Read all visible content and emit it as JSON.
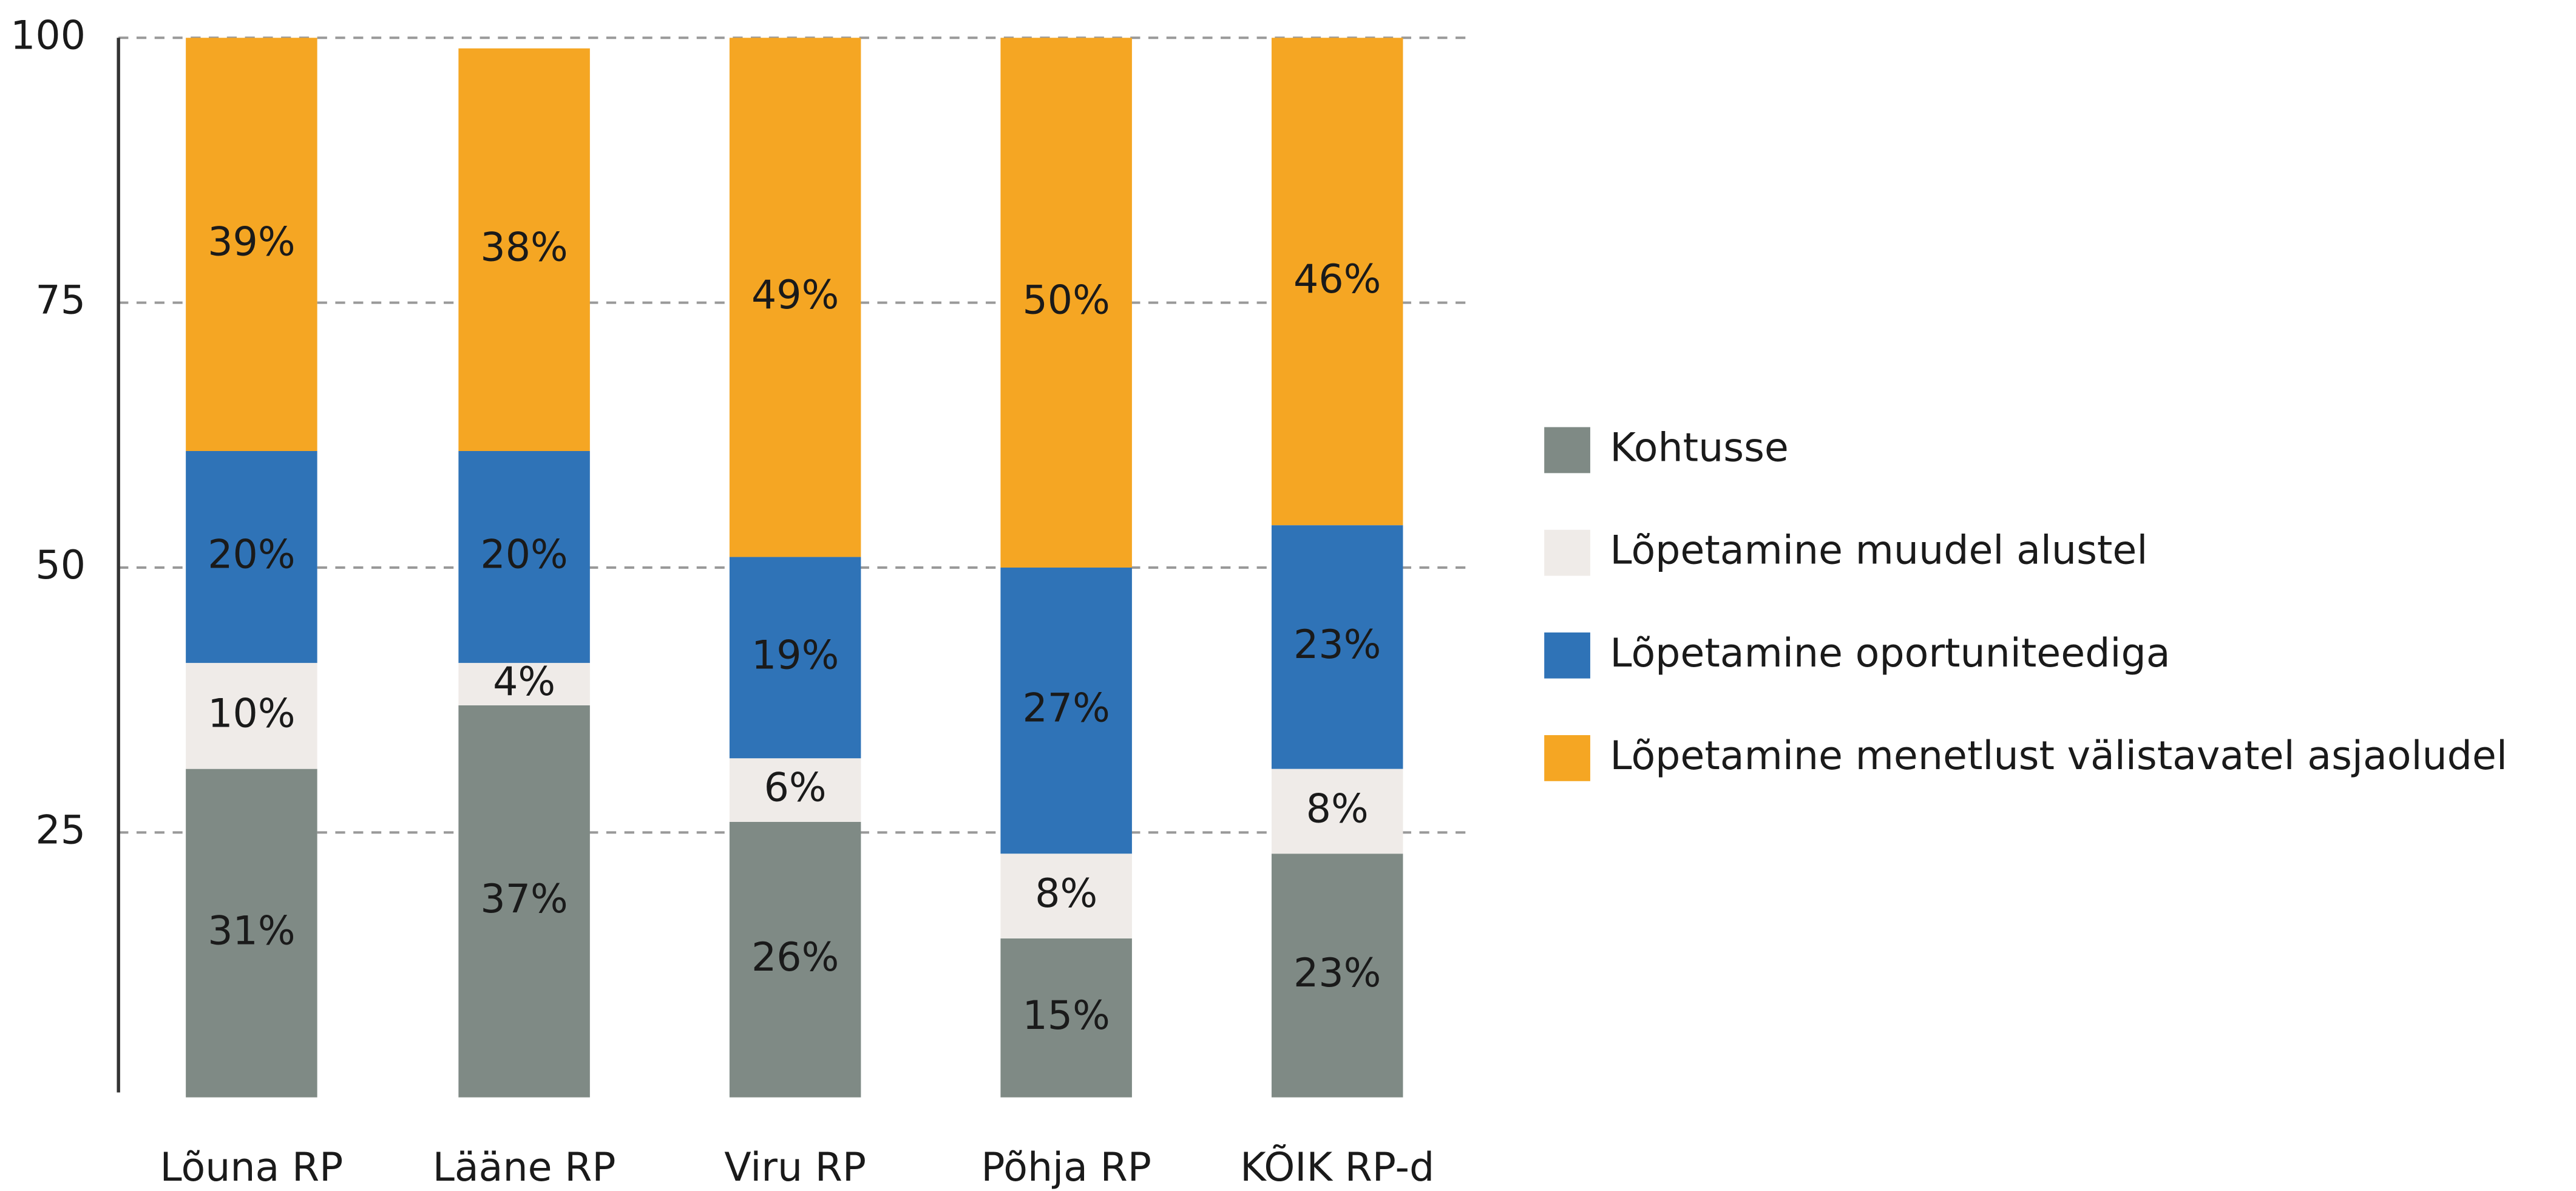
{
  "chart_data": {
    "type": "stacked_bar",
    "categories": [
      "Lõuna RP",
      "Lääne RP",
      "Viru RP",
      "Põhja RP",
      "KÕIK RP-d"
    ],
    "series": [
      {
        "name": "Kohtusse",
        "color": "#7f8a85",
        "values": [
          31,
          37,
          26,
          15,
          23
        ],
        "value_labels": [
          "31%",
          "37%",
          "26%",
          "15%",
          "23%"
        ]
      },
      {
        "name": "Lõpetamine muudel alustel",
        "color": "#efebe8",
        "values": [
          10,
          4,
          6,
          8,
          8
        ],
        "value_labels": [
          "10%",
          "4%",
          "6%",
          "8%",
          "8%"
        ]
      },
      {
        "name": "Lõpetamine oportuniteediga",
        "color": "#2f73b7",
        "values": [
          20,
          20,
          19,
          27,
          23
        ],
        "value_labels": [
          "20%",
          "20%",
          "19%",
          "27%",
          "23%"
        ]
      },
      {
        "name": "Lõpetamine menetlust välistavatel asjaoludel",
        "color": "#f5a623",
        "values": [
          39,
          38,
          49,
          50,
          46
        ],
        "value_labels": [
          "39%",
          "38%",
          "49%",
          "50%",
          "46%"
        ]
      }
    ],
    "ylim": [
      0,
      100
    ],
    "yticks": [
      25,
      50,
      75,
      100
    ],
    "grid": true,
    "legend": "right"
  }
}
